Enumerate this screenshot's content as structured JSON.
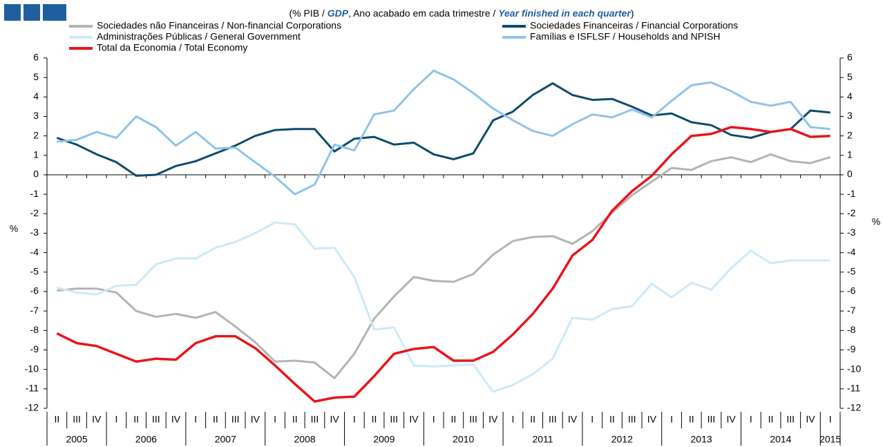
{
  "chart_data": {
    "type": "line",
    "subtitle": [
      "(% PIB / ",
      "GDP",
      ", Ano acabado em cada trimestre / ",
      "Year finished in each quarter",
      ")"
    ],
    "ylabel": "%",
    "y2label": "%",
    "categories": [
      "II",
      "III",
      "IV",
      "I",
      "II",
      "III",
      "IV",
      "I",
      "II",
      "III",
      "IV",
      "I",
      "II",
      "III",
      "IV",
      "I",
      "II",
      "III",
      "IV",
      "I",
      "II",
      "III",
      "IV",
      "I",
      "II",
      "III",
      "IV",
      "I",
      "II",
      "III",
      "IV",
      "I",
      "II",
      "III",
      "IV",
      "I",
      "II",
      "III",
      "IV",
      "I"
    ],
    "years": [
      "2005",
      "2006",
      "2007",
      "2008",
      "2009",
      "2010",
      "2011",
      "2012",
      "2013",
      "2014",
      "2015"
    ],
    "ylim": [
      -12,
      6
    ],
    "yticks": [
      -12,
      -11,
      -10,
      -9,
      -8,
      -7,
      -6,
      -5,
      -4,
      -3,
      -2,
      -1,
      0,
      1,
      2,
      3,
      4,
      5,
      6
    ],
    "y2lim": [
      -12,
      6
    ],
    "y2ticks": [
      -12,
      -11,
      -10,
      -9,
      -8,
      -7,
      -6,
      -5,
      -4,
      -3,
      -2,
      -1,
      0,
      1,
      2,
      3,
      4,
      5,
      6
    ],
    "series": [
      {
        "name": "Sociedades não Financeiras / Non-financial Corporations",
        "color": "#b3b3b3",
        "values": [
          -5.95,
          -5.85,
          -5.85,
          -6.05,
          -7.0,
          -7.3,
          -7.15,
          -7.35,
          -7.05,
          -7.8,
          -8.6,
          -9.6,
          -9.55,
          -9.65,
          -10.45,
          -9.2,
          -7.4,
          -6.25,
          -5.25,
          -5.45,
          -5.5,
          -5.1,
          -4.1,
          -3.4,
          -3.2,
          -3.15,
          -3.55,
          -2.9,
          -1.95,
          -1.05,
          -0.35,
          0.35,
          0.25,
          0.7,
          0.9,
          0.65,
          1.05,
          0.7,
          0.6,
          0.9
        ]
      },
      {
        "name": "Sociedades Financeiras / Financial Corporations",
        "color": "#0d4a6b",
        "values": [
          1.9,
          1.55,
          1.05,
          0.65,
          -0.05,
          0.0,
          0.45,
          0.7,
          1.1,
          1.5,
          2.0,
          2.3,
          2.35,
          2.35,
          1.2,
          1.85,
          1.95,
          1.55,
          1.65,
          1.05,
          0.8,
          1.1,
          2.8,
          3.25,
          4.1,
          4.7,
          4.1,
          3.85,
          3.9,
          3.5,
          3.05,
          3.15,
          2.7,
          2.55,
          2.05,
          1.9,
          2.2,
          2.35,
          3.3,
          3.2
        ]
      },
      {
        "name": "Administrações Públicas / General Government",
        "color": "#cde9f8",
        "values": [
          -5.8,
          -6.05,
          -6.15,
          -5.7,
          -5.65,
          -4.6,
          -4.3,
          -4.3,
          -3.75,
          -3.45,
          -3.0,
          -2.45,
          -2.55,
          -3.8,
          -3.75,
          -5.25,
          -7.95,
          -7.85,
          -9.8,
          -9.85,
          -9.8,
          -9.75,
          -11.15,
          -10.8,
          -10.25,
          -9.45,
          -7.35,
          -7.45,
          -6.9,
          -6.75,
          -5.6,
          -6.3,
          -5.55,
          -5.9,
          -4.8,
          -3.9,
          -4.55,
          -4.4,
          -4.4,
          -4.4
        ]
      },
      {
        "name": "Famílias e ISFLSF / Households and NPISH",
        "color": "#8ec3ea",
        "values": [
          1.7,
          1.8,
          2.2,
          1.9,
          3.0,
          2.45,
          1.5,
          2.2,
          1.35,
          1.4,
          0.65,
          -0.1,
          -1.0,
          -0.5,
          1.55,
          1.25,
          3.1,
          3.3,
          4.4,
          5.35,
          4.9,
          4.2,
          3.4,
          2.8,
          2.25,
          2.0,
          2.6,
          3.1,
          2.95,
          3.35,
          2.95,
          3.8,
          4.6,
          4.75,
          4.3,
          3.75,
          3.55,
          3.75,
          2.45,
          2.35
        ]
      },
      {
        "name": "Total da Economia / Total Economy",
        "color": "#e8141b",
        "values": [
          -8.15,
          -8.65,
          -8.8,
          -9.2,
          -9.6,
          -9.45,
          -9.5,
          -8.65,
          -8.3,
          -8.3,
          -8.9,
          -9.8,
          -10.75,
          -11.65,
          -11.45,
          -11.4,
          -10.35,
          -9.2,
          -8.95,
          -8.85,
          -9.55,
          -9.55,
          -9.1,
          -8.2,
          -7.15,
          -5.85,
          -4.15,
          -3.35,
          -1.85,
          -0.85,
          -0.05,
          1.05,
          2.0,
          2.1,
          2.45,
          2.35,
          2.2,
          2.35,
          1.95,
          2.0
        ]
      }
    ]
  }
}
